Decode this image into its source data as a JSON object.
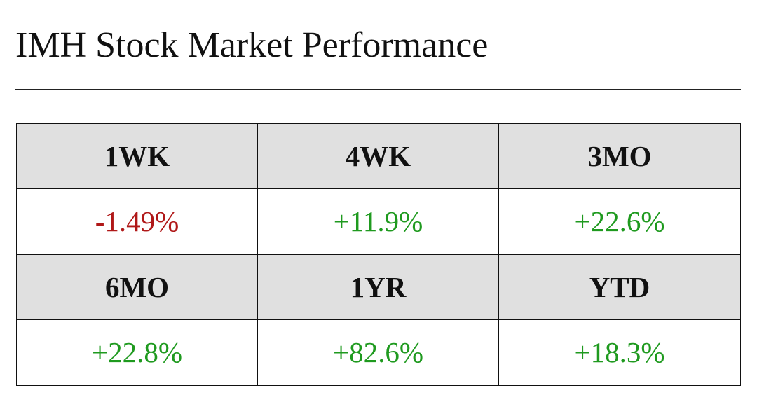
{
  "header": {
    "title": "IMH Stock Market Performance"
  },
  "table": {
    "header_color": "#e0e0e0",
    "groups": [
      {
        "headers": [
          "1WK",
          "4WK",
          "3MO"
        ],
        "values": [
          "-1.49%",
          "+11.9%",
          "+22.6%"
        ],
        "colors": [
          "#b01818",
          "#1f9a1f",
          "#1f9a1f"
        ]
      },
      {
        "headers": [
          "6MO",
          "1YR",
          "YTD"
        ],
        "values": [
          "+22.8%",
          "+82.6%",
          "+18.3%"
        ],
        "colors": [
          "#1f9a1f",
          "#1f9a1f",
          "#1f9a1f"
        ]
      }
    ]
  }
}
